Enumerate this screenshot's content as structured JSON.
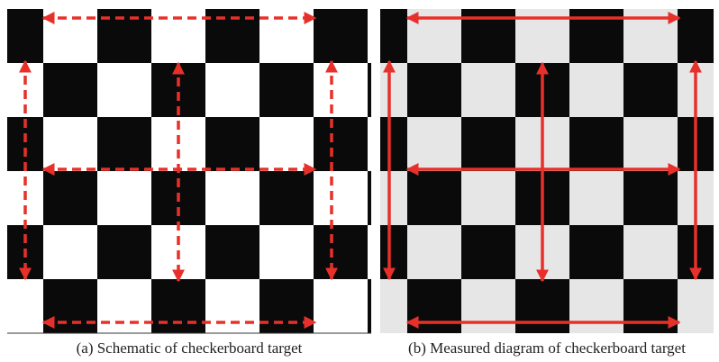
{
  "figure": {
    "panels": [
      {
        "caption": "(a) Schematic of checkerboard target"
      },
      {
        "caption": "(b) Measured diagram of checkerboard target"
      }
    ]
  }
}
